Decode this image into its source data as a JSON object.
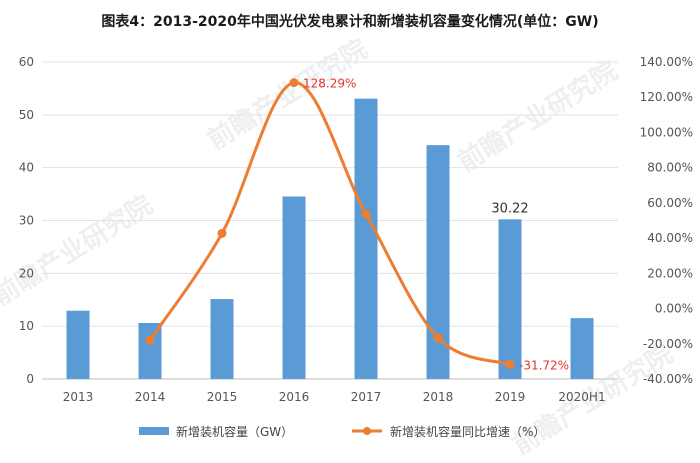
{
  "chart_data": {
    "type": "bar",
    "title": "图表4：2013-2020年中国光伏发电累计和新增装机容量变化情况(单位：GW)",
    "categories": [
      "2013",
      "2014",
      "2015",
      "2016",
      "2017",
      "2018",
      "2019",
      "2020H1"
    ],
    "series": [
      {
        "name": "新增装机容量（GW）",
        "type": "bar",
        "axis": "left",
        "color": "#5b9bd5",
        "values": [
          12.92,
          10.6,
          15.13,
          34.54,
          53.06,
          44.26,
          30.22,
          11.52
        ]
      },
      {
        "name": "新增装机容量同比增速（%）",
        "type": "line",
        "axis": "right",
        "color": "#ed7d31",
        "smooth": true,
        "values": [
          null,
          -17.9,
          42.7,
          128.29,
          53.6,
          -16.6,
          -31.72,
          null
        ]
      }
    ],
    "left_axis": {
      "min": 0,
      "max": 60,
      "step": 10,
      "ticks": [
        "0",
        "10",
        "20",
        "30",
        "40",
        "50",
        "60"
      ]
    },
    "right_axis": {
      "min": -40,
      "max": 140,
      "step": 20,
      "ticks": [
        "-40.00%",
        "-20.00%",
        "0.00%",
        "20.00%",
        "40.00%",
        "60.00%",
        "80.00%",
        "100.00%",
        "120.00%",
        "140.00%"
      ]
    },
    "annotations": [
      {
        "series": 0,
        "index": 6,
        "text": "30.22"
      },
      {
        "series": 1,
        "index": 3,
        "text": "128.29%"
      },
      {
        "series": 1,
        "index": 6,
        "text": "-31.72%"
      }
    ],
    "legend_position": "bottom",
    "grid": true,
    "watermark": "前瞻产业研究院"
  }
}
